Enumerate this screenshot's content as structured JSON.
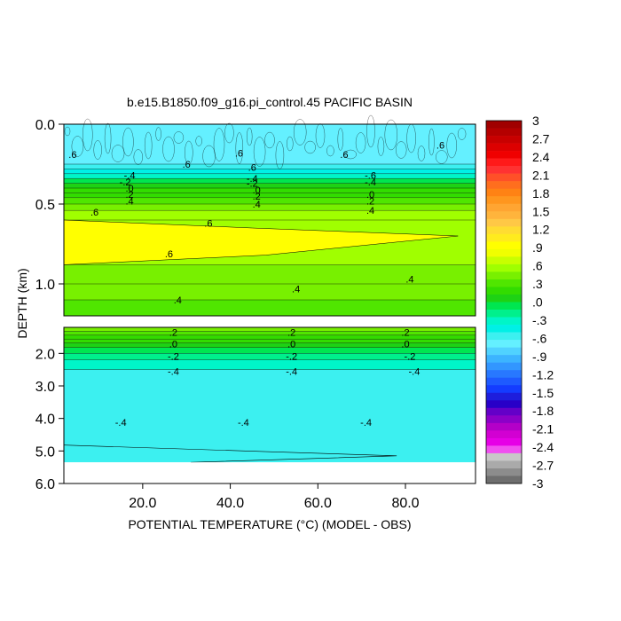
{
  "chart_data": {
    "type": "heatmap",
    "title": "b.e15.B1850.f09_g16.pi_control.45 PACIFIC BASIN",
    "xlabel": "POTENTIAL TEMPERATURE (°C) (MODEL - OBS)",
    "ylabel": "DEPTH (km)",
    "x_range": [
      2,
      96
    ],
    "x_ticks": [
      20,
      40,
      60,
      80
    ],
    "x_tick_labels": [
      "20.0",
      "40.0",
      "60.0",
      "80.0"
    ],
    "panels": [
      {
        "name": "upper",
        "y_range": [
          0,
          1.2
        ],
        "y_ticks": [
          0,
          0.5,
          1.0
        ],
        "y_tick_labels": [
          "0.0",
          "0.5",
          "1.0"
        ],
        "bands": [
          {
            "y0": 0.0,
            "y1": 0.25,
            "value": -0.65
          },
          {
            "y0": 0.25,
            "y1": 0.28,
            "value": -0.55
          },
          {
            "y0": 0.28,
            "y1": 0.31,
            "value": -0.4
          },
          {
            "y0": 0.31,
            "y1": 0.34,
            "value": -0.25
          },
          {
            "y0": 0.34,
            "y1": 0.37,
            "value": -0.1
          },
          {
            "y0": 0.37,
            "y1": 0.4,
            "value": 0.05
          },
          {
            "y0": 0.4,
            "y1": 0.43,
            "value": 0.15
          },
          {
            "y0": 0.43,
            "y1": 0.46,
            "value": 0.25
          },
          {
            "y0": 0.46,
            "y1": 0.5,
            "value": 0.35
          },
          {
            "y0": 0.5,
            "y1": 0.54,
            "value": 0.45
          },
          {
            "y0": 0.54,
            "y1": 0.6,
            "value": 0.55
          },
          {
            "y0": 0.6,
            "y1": 0.88,
            "value": 0.55
          },
          {
            "y0": 0.88,
            "y1": 1.0,
            "value": 0.45
          },
          {
            "y0": 1.0,
            "y1": 1.1,
            "value": 0.4
          },
          {
            "y0": 1.1,
            "y1": 1.2,
            "value": 0.3
          }
        ],
        "contour_labels": [
          {
            "text": ".6",
            "x": 4,
            "y": 0.19
          },
          {
            "text": ".6",
            "x": 30,
            "y": 0.25
          },
          {
            "text": ".6",
            "x": 42,
            "y": 0.18
          },
          {
            "text": ".6",
            "x": 45,
            "y": 0.27
          },
          {
            "text": ".6",
            "x": 66,
            "y": 0.19
          },
          {
            "text": ".6",
            "x": 88,
            "y": 0.13
          },
          {
            "text": "-.4",
            "x": 17,
            "y": 0.32
          },
          {
            "text": "-.2",
            "x": 16,
            "y": 0.36
          },
          {
            "text": ".0",
            "x": 17,
            "y": 0.4
          },
          {
            "text": ".2",
            "x": 17,
            "y": 0.44
          },
          {
            "text": ".4",
            "x": 17,
            "y": 0.48
          },
          {
            "text": "-.4",
            "x": 45,
            "y": 0.34
          },
          {
            "text": "-.2",
            "x": 45,
            "y": 0.37
          },
          {
            "text": ".0",
            "x": 46,
            "y": 0.41
          },
          {
            "text": ".2",
            "x": 46,
            "y": 0.45
          },
          {
            "text": ".4",
            "x": 46,
            "y": 0.5
          },
          {
            "text": "-.6",
            "x": 72,
            "y": 0.32
          },
          {
            "text": "-.4",
            "x": 72,
            "y": 0.36
          },
          {
            "text": ".0",
            "x": 72,
            "y": 0.44
          },
          {
            "text": ".2",
            "x": 72,
            "y": 0.48
          },
          {
            "text": ".4",
            "x": 72,
            "y": 0.54
          },
          {
            "text": ".6",
            "x": 9,
            "y": 0.55
          },
          {
            "text": ".6",
            "x": 35,
            "y": 0.62
          },
          {
            "text": ".6",
            "x": 26,
            "y": 0.81
          },
          {
            "text": ".4",
            "x": 28,
            "y": 1.1
          },
          {
            "text": ".4",
            "x": 55,
            "y": 1.03
          },
          {
            "text": ".4",
            "x": 81,
            "y": 0.97
          }
        ]
      },
      {
        "name": "lower",
        "y_range": [
          1.2,
          6.0
        ],
        "y_ticks": [
          2.0,
          3.0,
          4.0,
          5.0,
          6.0
        ],
        "y_tick_labels": [
          "2.0",
          "3.0",
          "4.0",
          "5.0",
          "6.0"
        ],
        "bands": [
          {
            "y0": 1.2,
            "y1": 1.32,
            "value": 0.45
          },
          {
            "y0": 1.32,
            "y1": 1.44,
            "value": 0.35
          },
          {
            "y0": 1.44,
            "y1": 1.56,
            "value": 0.25
          },
          {
            "y0": 1.56,
            "y1": 1.68,
            "value": 0.15
          },
          {
            "y0": 1.68,
            "y1": 1.82,
            "value": 0.05
          },
          {
            "y0": 1.82,
            "y1": 2.0,
            "value": -0.05
          },
          {
            "y0": 2.0,
            "y1": 2.2,
            "value": -0.2
          },
          {
            "y0": 2.2,
            "y1": 2.5,
            "value": -0.35
          },
          {
            "y0": 2.5,
            "y1": 5.35,
            "value": -0.5
          }
        ],
        "contour_labels": [
          {
            "text": ".2",
            "x": 27,
            "y": 1.35
          },
          {
            "text": ".0",
            "x": 27,
            "y": 1.7
          },
          {
            "text": "-.2",
            "x": 27,
            "y": 2.08
          },
          {
            "text": "-.4",
            "x": 27,
            "y": 2.55
          },
          {
            "text": ".2",
            "x": 54,
            "y": 1.35
          },
          {
            "text": ".0",
            "x": 54,
            "y": 1.7
          },
          {
            "text": "-.2",
            "x": 54,
            "y": 2.08
          },
          {
            "text": "-.4",
            "x": 54,
            "y": 2.55
          },
          {
            "text": ".2",
            "x": 80,
            "y": 1.35
          },
          {
            "text": ".0",
            "x": 80,
            "y": 1.7
          },
          {
            "text": "-.2",
            "x": 81,
            "y": 2.08
          },
          {
            "text": "-.4",
            "x": 82,
            "y": 2.55
          },
          {
            "text": "-.4",
            "x": 15,
            "y": 4.12
          },
          {
            "text": "-.4",
            "x": 43,
            "y": 4.12
          },
          {
            "text": "-.4",
            "x": 71,
            "y": 4.12
          }
        ]
      }
    ],
    "colorbar": {
      "labels": [
        "3",
        "2.7",
        "2.4",
        "2.1",
        "1.8",
        "1.5",
        "1.2",
        ".9",
        ".6",
        ".3",
        ".0",
        "-.3",
        "-.6",
        "-.9",
        "-1.2",
        "-1.5",
        "-1.8",
        "-2.1",
        "-2.4",
        "-2.7",
        "-3"
      ],
      "values": [
        3,
        2.7,
        2.4,
        2.1,
        1.8,
        1.5,
        1.2,
        0.9,
        0.6,
        0.3,
        0.0,
        -0.3,
        -0.6,
        -0.9,
        -1.2,
        -1.5,
        -1.8,
        -2.1,
        -2.4,
        -2.7,
        -3
      ],
      "colors": [
        "#a00000",
        "#b40000",
        "#c80000",
        "#dc0000",
        "#f00000",
        "#ff1a1a",
        "#ff3232",
        "#ff5028",
        "#ff6e1e",
        "#ff8214",
        "#ff961e",
        "#ffa532",
        "#ffb43c",
        "#ffc846",
        "#ffdc32",
        "#ffeb1e",
        "#ffff00",
        "#f0ff00",
        "#c8ff00",
        "#a0ff00",
        "#78f000",
        "#50e600",
        "#32dc00",
        "#1ed214",
        "#00e650",
        "#00f08c",
        "#00f5c8",
        "#00f0e6",
        "#3cf0f0",
        "#64f0ff",
        "#50d2ff",
        "#3cb4ff",
        "#3296ff",
        "#2878ff",
        "#1e5aff",
        "#143cff",
        "#1e1edc",
        "#2800c8",
        "#6400c8",
        "#8c00c8",
        "#b400c8",
        "#d200d2",
        "#e600e6",
        "#f050f0",
        "#c8c8c8",
        "#aaaaaa",
        "#8c8c8c",
        "#6e6e6e"
      ],
      "range": [
        -3,
        3
      ]
    }
  }
}
